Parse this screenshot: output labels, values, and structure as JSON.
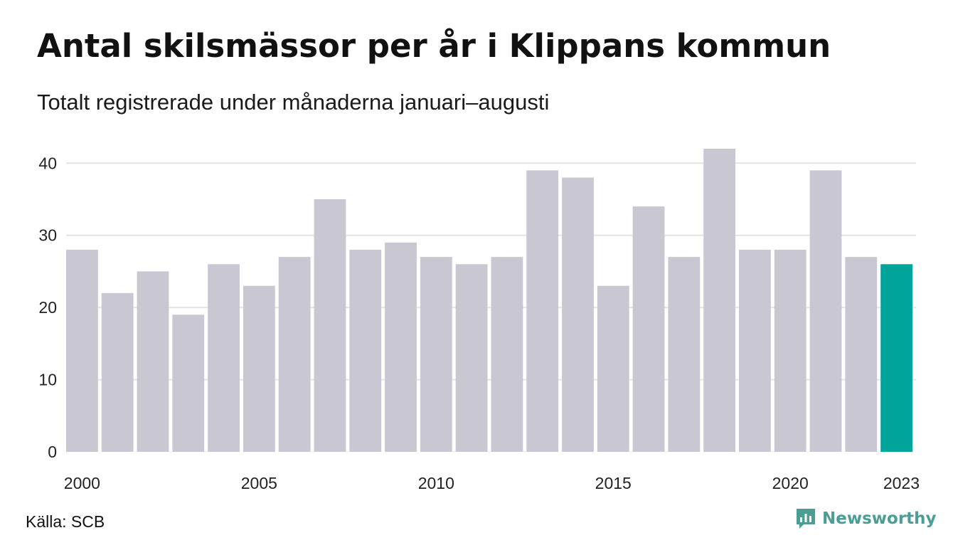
{
  "header": {
    "title": "Antal skilsmässor per år i Klippans kommun",
    "subtitle": "Totalt registrerade under månaderna januari–augusti"
  },
  "footer": {
    "source": "Källa: SCB",
    "brand": "Newsworthy",
    "brand_icon": "newsworthy-logo-icon"
  },
  "colors": {
    "bar": "#c8c7d2",
    "highlight": "#00a49a",
    "grid": "#e4e4e8",
    "brand": "#4a9e93"
  },
  "chart_data": {
    "type": "bar",
    "categories": [
      "2000",
      "2001",
      "2002",
      "2003",
      "2004",
      "2005",
      "2006",
      "2007",
      "2008",
      "2009",
      "2010",
      "2011",
      "2012",
      "2013",
      "2014",
      "2015",
      "2016",
      "2017",
      "2018",
      "2019",
      "2020",
      "2021",
      "2022",
      "2023"
    ],
    "values": [
      28,
      22,
      25,
      19,
      26,
      23,
      27,
      35,
      28,
      29,
      27,
      26,
      27,
      39,
      38,
      23,
      34,
      27,
      42,
      28,
      28,
      39,
      27,
      26
    ],
    "highlight_category": "2023",
    "x_tick_labels": [
      "2000",
      "2005",
      "2010",
      "2015",
      "2020",
      "2023"
    ],
    "y_ticks": [
      0,
      10,
      20,
      30,
      40
    ],
    "ylim": [
      0,
      42
    ],
    "grid": true,
    "legend": "none",
    "xlabel": "",
    "ylabel": ""
  }
}
